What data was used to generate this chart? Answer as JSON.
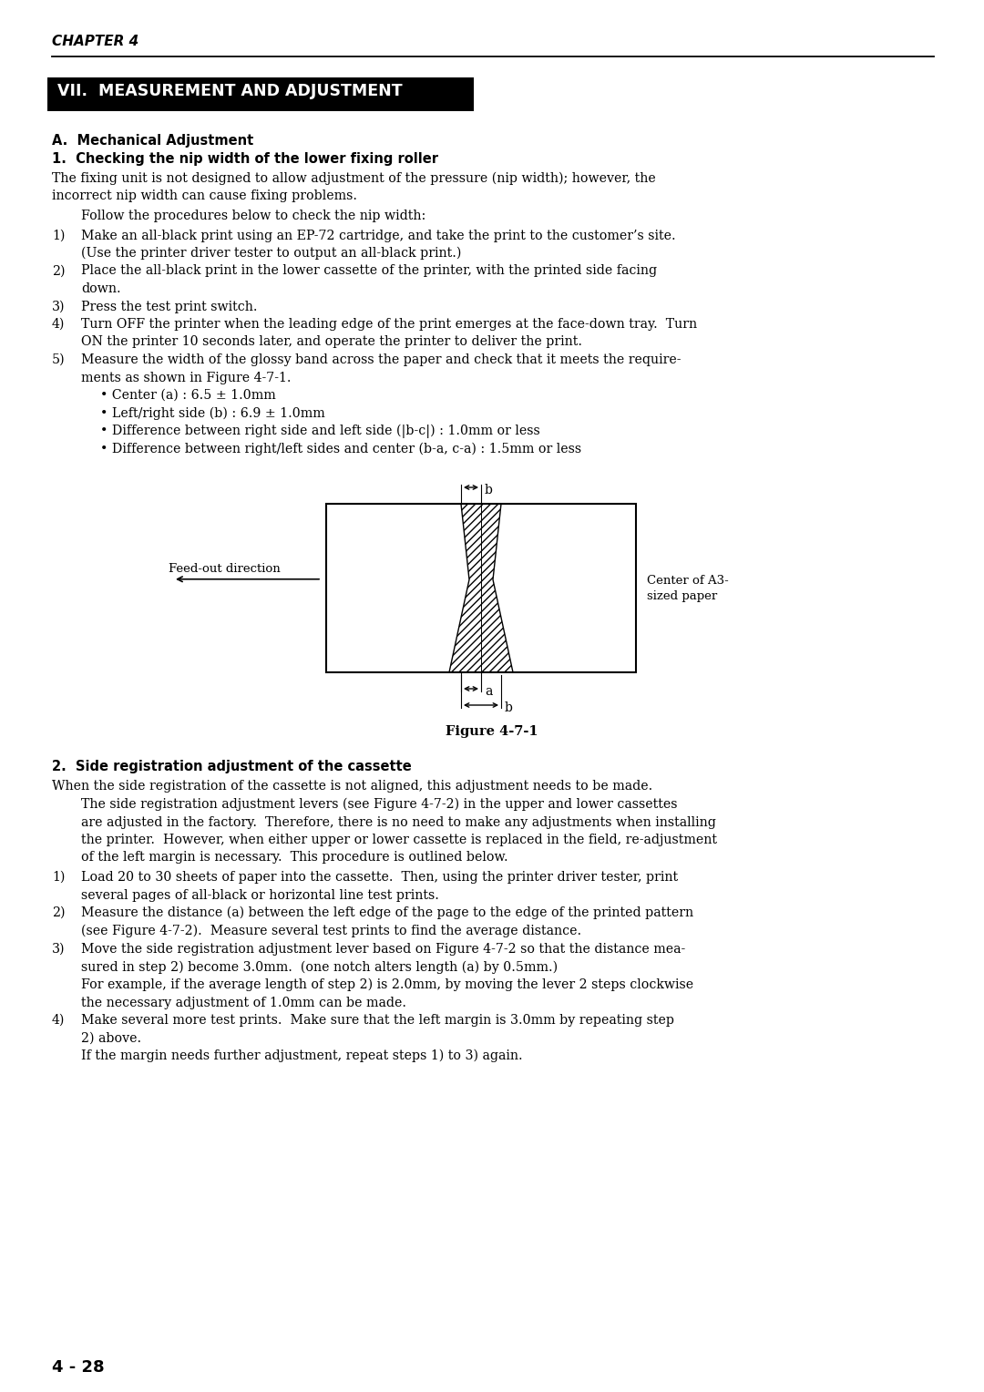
{
  "chapter_header": "CHAPTER 4",
  "section_title": "VII.  MEASUREMENT AND ADJUSTMENT",
  "section_a_header": "A.  Mechanical Adjustment",
  "section_1_header": "1.  Checking the nip width of the lower fixing roller",
  "para1_lines": [
    "The fixing unit is not designed to allow adjustment of the pressure (nip width); however, the",
    "incorrect nip width can cause fixing problems."
  ],
  "para_indent": "Follow the procedures below to check the nip width:",
  "steps": [
    [
      "Make an all-black print using an EP-72 cartridge, and take the print to the customer’s site.",
      "(Use the printer driver tester to output an all-black print.)"
    ],
    [
      "Place the all-black print in the lower cassette of the printer, with the printed side facing",
      "down."
    ],
    [
      "Press the test print switch."
    ],
    [
      "Turn OFF the printer when the leading edge of the print emerges at the face-down tray.  Turn",
      "ON the printer 10 seconds later, and operate the printer to deliver the print."
    ],
    [
      "Measure the width of the glossy band across the paper and check that it meets the require-",
      "ments as shown in Figure 4-7-1."
    ]
  ],
  "bullets": [
    "• Center (a) : 6.5 ± 1.0mm",
    "• Left/right side (b) : 6.9 ± 1.0mm",
    "• Difference between right side and left side (|b-c|) : 1.0mm or less",
    "• Difference between right/left sides and center (b-a, c-a) : 1.5mm or less"
  ],
  "figure_caption": "Figure 4-7-1",
  "section_2_header": "2.  Side registration adjustment of the cassette",
  "section_2_para1": "When the side registration of the cassette is not aligned, this adjustment needs to be made.",
  "section_2_para2_lines": [
    "The side registration adjustment levers (see Figure 4-7-2) in the upper and lower cassettes",
    "are adjusted in the factory.  Therefore, there is no need to make any adjustments when installing",
    "the printer.  However, when either upper or lower cassette is replaced in the field, re-adjustment",
    "of the left margin is necessary.  This procedure is outlined below."
  ],
  "section_2_steps": [
    [
      "Load 20 to 30 sheets of paper into the cassette.  Then, using the printer driver tester, print",
      "several pages of all-black or horizontal line test prints."
    ],
    [
      "Measure the distance (a) between the left edge of the page to the edge of the printed pattern",
      "(see Figure 4-7-2).  Measure several test prints to find the average distance."
    ],
    [
      "Move the side registration adjustment lever based on Figure 4-7-2 so that the distance mea-",
      "sured in step 2) become 3.0mm.  (one notch alters length (a) by 0.5mm.)",
      "For example, if the average length of step 2) is 2.0mm, by moving the lever 2 steps clockwise",
      "the necessary adjustment of 1.0mm can be made."
    ],
    [
      "Make several more test prints.  Make sure that the left margin is 3.0mm by repeating step",
      "2) above.",
      "If the margin needs further adjustment, repeat steps 1) to 3) again."
    ]
  ],
  "page_number": "4 - 28",
  "bg_color": "#ffffff",
  "text_color": "#000000",
  "header_bg": "#000000",
  "header_fg": "#ffffff"
}
